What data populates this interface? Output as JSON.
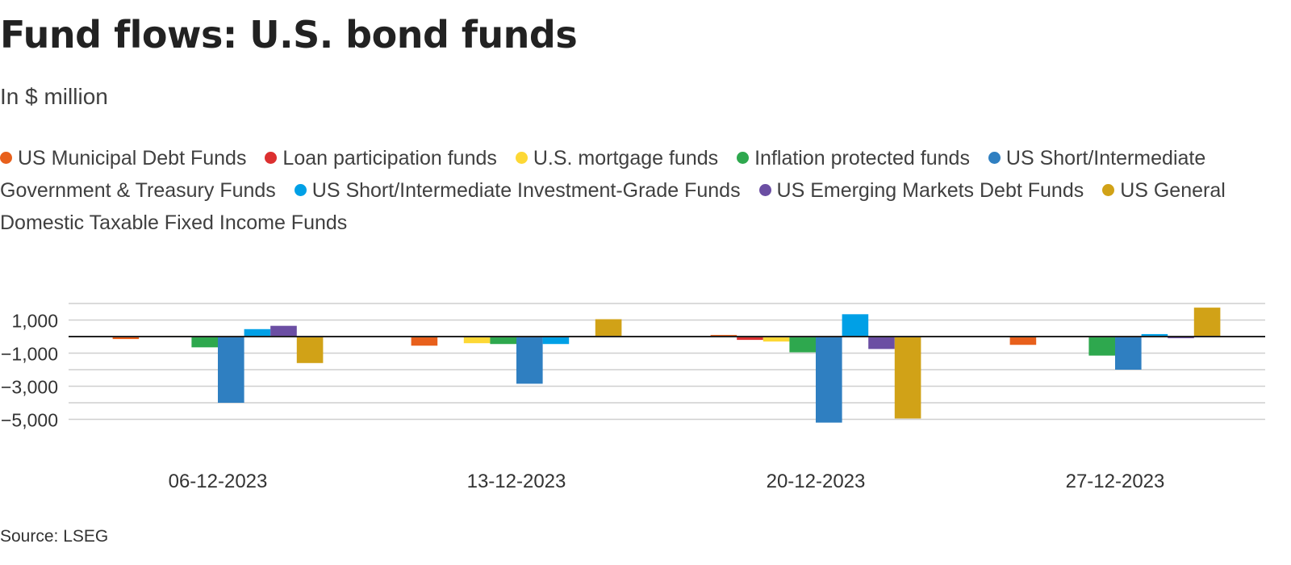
{
  "chart_data": {
    "type": "bar",
    "title": "Fund flows: U.S. bond funds",
    "subtitle": "In $ million",
    "source": "Source: LSEG",
    "categories": [
      "06-12-2023",
      "13-12-2023",
      "20-12-2023",
      "27-12-2023"
    ],
    "yticks": [
      1000,
      -1000,
      -3000,
      -5000
    ],
    "ytick_labels": [
      "1,000",
      "−1,000",
      "−3,000",
      "−5,000"
    ],
    "ylim": [
      -6000,
      2000
    ],
    "grid": true,
    "legend_position": "top",
    "series": [
      {
        "name": "US Municipal Debt Funds",
        "color": "#e8601c",
        "values": [
          -150,
          -550,
          100,
          -500
        ]
      },
      {
        "name": "Loan participation funds",
        "color": "#dc3030",
        "values": [
          0,
          0,
          -200,
          0
        ]
      },
      {
        "name": "U.S. mortgage funds",
        "color": "#fdd835",
        "values": [
          50,
          -400,
          -300,
          -50
        ]
      },
      {
        "name": "Inflation protected funds",
        "color": "#2ea84e",
        "values": [
          -650,
          -450,
          -950,
          -1150
        ]
      },
      {
        "name": "US Short/Intermediate Government & Treasury Funds",
        "color": "#2f7fc1",
        "values": [
          -4000,
          -2850,
          -5200,
          -2000
        ]
      },
      {
        "name": "US Short/Intermediate Investment-Grade Funds",
        "color": "#00a0e6",
        "values": [
          450,
          -450,
          1350,
          150
        ]
      },
      {
        "name": "US Emerging Markets Debt Funds",
        "color": "#6b4ea3",
        "values": [
          650,
          50,
          -750,
          -100
        ]
      },
      {
        "name": "US General Domestic Taxable Fixed Income Funds",
        "color": "#d1a217",
        "values": [
          -1600,
          1050,
          -4950,
          1750
        ]
      }
    ]
  }
}
